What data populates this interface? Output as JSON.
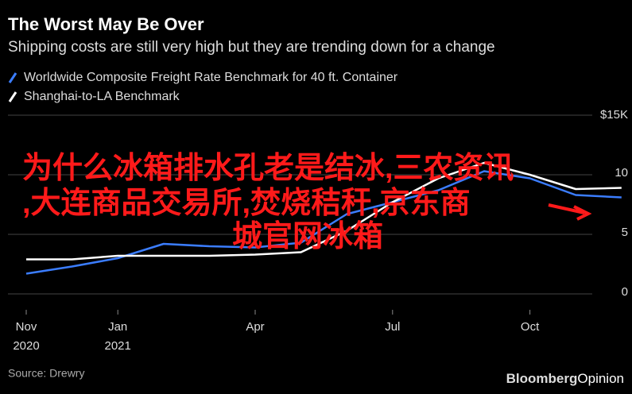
{
  "chart_data": {
    "type": "line",
    "title": "The Worst May Be Over",
    "subtitle": "Shipping costs are still very high but they are trending down for a change",
    "x": [
      "2020-11",
      "2020-12",
      "2021-01",
      "2021-02",
      "2021-03",
      "2021-04",
      "2021-05",
      "2021-06",
      "2021-07",
      "2021-08",
      "2021-09",
      "2021-10",
      "2021-11",
      "2021-12"
    ],
    "series": [
      {
        "name": "Worldwide Composite Freight Rate Benchmark for 40 ft. Container",
        "color": "#3b7dff",
        "values": [
          1.7,
          2.3,
          3.0,
          4.2,
          4.0,
          3.9,
          4.3,
          6.7,
          7.7,
          8.7,
          10.3,
          9.7,
          8.3,
          8.1
        ]
      },
      {
        "name": "Shanghai-to-LA Benchmark",
        "color": "#ffffff",
        "values": [
          2.9,
          2.9,
          3.2,
          3.2,
          3.2,
          3.3,
          3.5,
          5.3,
          7.7,
          9.7,
          11.0,
          10.0,
          8.8,
          8.9
        ]
      }
    ],
    "xticks": [
      {
        "value": "2020-11",
        "label": "Nov",
        "sublabel": "2020"
      },
      {
        "value": "2021-01",
        "label": "Jan",
        "sublabel": "2021"
      },
      {
        "value": "2021-04",
        "label": "Apr"
      },
      {
        "value": "2021-07",
        "label": "Jul"
      },
      {
        "value": "2021-10",
        "label": "Oct"
      }
    ],
    "ylim": [
      0,
      15
    ],
    "yticks": [
      0,
      5,
      10,
      {
        "value": 15,
        "label": "$15K"
      }
    ],
    "grid": true,
    "source": "Source: Drewry",
    "brand": "Bloomberg",
    "brand_suffix": "Opinion"
  },
  "overlay_text": [
    "为什么冰箱排水孔老是结冰,三农资讯",
    ",大连商品交易所,焚烧秸秆,京东商",
    "城官网冰箱"
  ]
}
